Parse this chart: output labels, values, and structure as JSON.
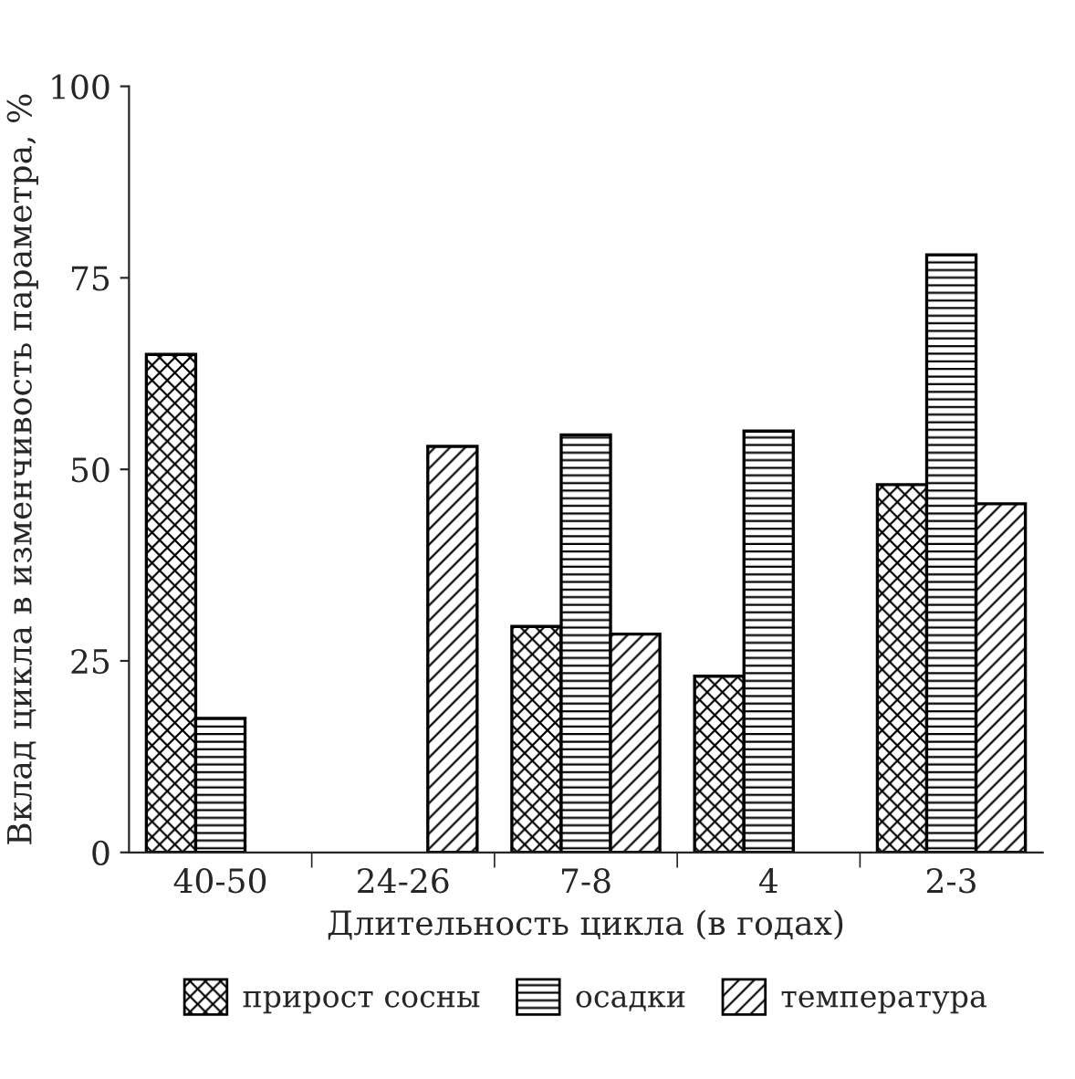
{
  "chart_data": {
    "type": "bar",
    "xlabel": "Длительность цикла (в годах)",
    "ylabel": "Вклад цикла в изменчивость параметра, %",
    "categories": [
      "40-50",
      "24-26",
      "7-8",
      "4",
      "2-3"
    ],
    "series": [
      {
        "name": "прирост сосны",
        "color": "#000000",
        "values": [
          65,
          null,
          29.5,
          23,
          48
        ]
      },
      {
        "name": "осадки",
        "color": "#000000",
        "values": [
          17.5,
          null,
          54.5,
          55,
          78
        ]
      },
      {
        "name": "температура",
        "color": "#000000",
        "values": [
          null,
          53,
          28.5,
          null,
          45.5
        ]
      }
    ],
    "ylim": [
      0,
      100
    ],
    "yticks": [
      0,
      25,
      50,
      75,
      100
    ],
    "grid": false,
    "legend": "bottom"
  }
}
